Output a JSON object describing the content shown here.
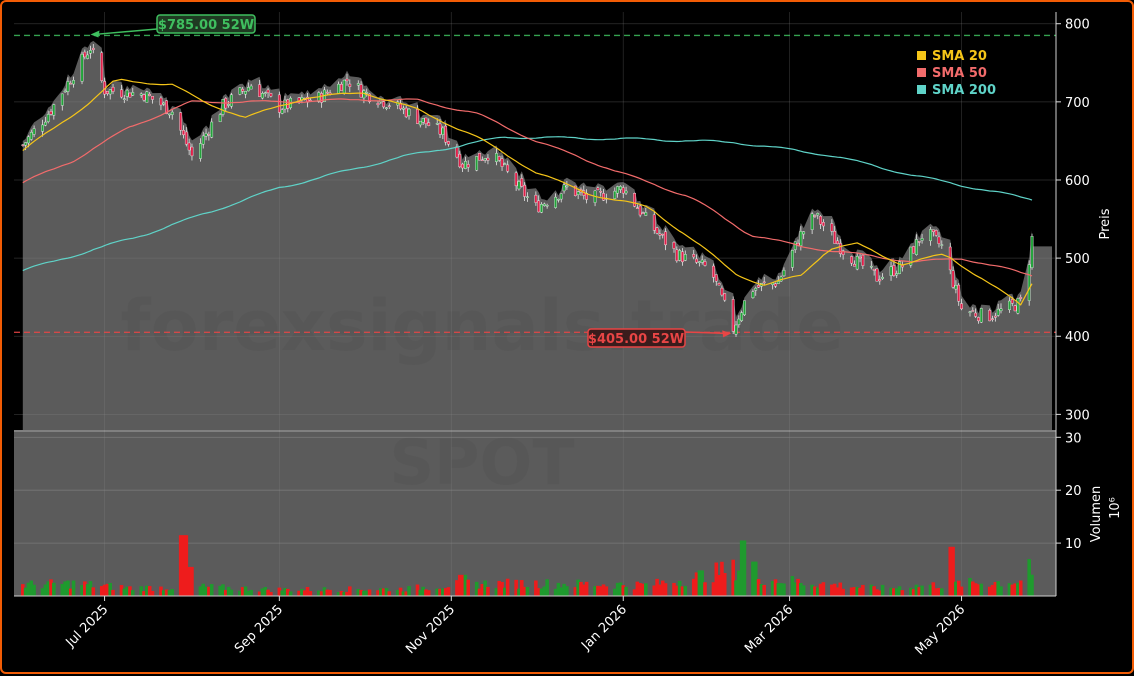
{
  "chart_data": {
    "type": "candlestick",
    "price_axis": {
      "label": "Preis",
      "ticks": [
        300,
        400,
        500,
        600,
        700,
        800
      ],
      "ylim": [
        280,
        815
      ]
    },
    "volume_axis": {
      "label": "Volumen",
      "multiplier": "10⁶",
      "ticks": [
        10,
        20,
        30
      ],
      "ylim": [
        0,
        31
      ]
    },
    "x_axis": {
      "ticks": [
        {
          "label": "Jul 2025",
          "date": "2025-07-01"
        },
        {
          "label": "Sep 2025",
          "date": "2025-09-01"
        },
        {
          "label": "Nov 2025",
          "date": "2025-11-01"
        },
        {
          "label": "Jan 2026",
          "date": "2026-01-01"
        },
        {
          "label": "Mar 2026",
          "date": "2026-03-01"
        },
        {
          "label": "May 2026",
          "date": "2026-05-01"
        }
      ],
      "range": [
        "2025-06-01",
        "2026-05-26"
      ]
    },
    "legend": {
      "position": "top-right",
      "items": [
        {
          "label": "SMA 20",
          "color": "#f5c518"
        },
        {
          "label": "SMA 50",
          "color": "#f26b6b"
        },
        {
          "label": "SMA 200",
          "color": "#5fd3c8"
        }
      ]
    },
    "annotations": [
      {
        "text": "$785.00 52W",
        "value": 785,
        "date": "2025-06-26",
        "color": "#3fbf5f",
        "kind": "high"
      },
      {
        "text": "$405.00 52W",
        "value": 405,
        "date": "2026-02-09",
        "color": "#e84545",
        "kind": "low"
      }
    ],
    "watermark": {
      "line1": "forexsignals.trade",
      "line2": "SPOT"
    },
    "close_anchors": [
      [
        "2025-06-01",
        640
      ],
      [
        "2025-06-12",
        690
      ],
      [
        "2025-06-26",
        770
      ],
      [
        "2025-07-01",
        715
      ],
      [
        "2025-07-15",
        710
      ],
      [
        "2025-07-25",
        688
      ],
      [
        "2025-08-01",
        630
      ],
      [
        "2025-08-12",
        695
      ],
      [
        "2025-08-22",
        722
      ],
      [
        "2025-09-01",
        693
      ],
      [
        "2025-09-15",
        705
      ],
      [
        "2025-09-25",
        728
      ],
      [
        "2025-10-01",
        712
      ],
      [
        "2025-10-15",
        690
      ],
      [
        "2025-10-29",
        660
      ],
      [
        "2025-11-05",
        620
      ],
      [
        "2025-11-15",
        635
      ],
      [
        "2025-11-25",
        590
      ],
      [
        "2025-12-01",
        565
      ],
      [
        "2025-12-12",
        590
      ],
      [
        "2025-12-20",
        575
      ],
      [
        "2026-01-01",
        590
      ],
      [
        "2026-01-10",
        545
      ],
      [
        "2026-01-20",
        505
      ],
      [
        "2026-02-01",
        485
      ],
      [
        "2026-02-09",
        410
      ],
      [
        "2026-02-15",
        460
      ],
      [
        "2026-02-25",
        470
      ],
      [
        "2026-03-05",
        530
      ],
      [
        "2026-03-10",
        555
      ],
      [
        "2026-03-20",
        510
      ],
      [
        "2026-04-01",
        475
      ],
      [
        "2026-04-10",
        490
      ],
      [
        "2026-04-18",
        535
      ],
      [
        "2026-04-24",
        515
      ],
      [
        "2026-05-01",
        435
      ],
      [
        "2026-05-10",
        425
      ],
      [
        "2026-05-20",
        440
      ],
      [
        "2026-05-23",
        445
      ],
      [
        "2026-05-26",
        525
      ]
    ],
    "sma20_anchors": [
      [
        "2025-06-01",
        635
      ],
      [
        "2025-06-26",
        700
      ],
      [
        "2025-07-05",
        728
      ],
      [
        "2025-07-25",
        722
      ],
      [
        "2025-08-05",
        700
      ],
      [
        "2025-08-20",
        680
      ],
      [
        "2025-09-10",
        705
      ],
      [
        "2025-10-01",
        712
      ],
      [
        "2025-10-20",
        690
      ],
      [
        "2025-11-10",
        655
      ],
      [
        "2025-12-01",
        610
      ],
      [
        "2025-12-20",
        582
      ],
      [
        "2026-01-10",
        565
      ],
      [
        "2026-01-25",
        525
      ],
      [
        "2026-02-10",
        480
      ],
      [
        "2026-02-20",
        465
      ],
      [
        "2026-03-05",
        478
      ],
      [
        "2026-03-15",
        512
      ],
      [
        "2026-03-25",
        518
      ],
      [
        "2026-04-10",
        492
      ],
      [
        "2026-04-25",
        505
      ],
      [
        "2026-05-10",
        470
      ],
      [
        "2026-05-22",
        440
      ],
      [
        "2026-05-26",
        468
      ]
    ],
    "sma50_anchors": [
      [
        "2025-06-01",
        595
      ],
      [
        "2025-06-20",
        625
      ],
      [
        "2025-07-10",
        668
      ],
      [
        "2025-08-01",
        700
      ],
      [
        "2025-09-01",
        700
      ],
      [
        "2025-10-01",
        703
      ],
      [
        "2025-10-20",
        702
      ],
      [
        "2025-11-10",
        685
      ],
      [
        "2025-12-01",
        650
      ],
      [
        "2026-01-01",
        608
      ],
      [
        "2026-01-25",
        578
      ],
      [
        "2026-02-15",
        530
      ],
      [
        "2026-03-05",
        515
      ],
      [
        "2026-03-25",
        505
      ],
      [
        "2026-04-15",
        495
      ],
      [
        "2026-05-01",
        500
      ],
      [
        "2026-05-26",
        478
      ]
    ],
    "sma200_anchors": [
      [
        "2025-06-01",
        483
      ],
      [
        "2025-07-15",
        530
      ],
      [
        "2025-09-01",
        590
      ],
      [
        "2025-10-15",
        630
      ],
      [
        "2025-11-20",
        655
      ],
      [
        "2026-01-10",
        652
      ],
      [
        "2026-02-10",
        648
      ],
      [
        "2026-03-15",
        632
      ],
      [
        "2026-04-15",
        605
      ],
      [
        "2026-05-26",
        575
      ]
    ],
    "volume_profile": [
      [
        "2025-06-01",
        2.2
      ],
      [
        "2025-06-20",
        2.5
      ],
      [
        "2025-07-10",
        1.6
      ],
      [
        "2025-08-05",
        1.8
      ],
      [
        "2025-08-30",
        1.3
      ],
      [
        "2025-10-15",
        1.4
      ],
      [
        "2025-11-05",
        2.4
      ],
      [
        "2025-12-01",
        2.5
      ],
      [
        "2026-01-10",
        2.2
      ],
      [
        "2026-01-25",
        3.5
      ],
      [
        "2026-02-05",
        5.0
      ],
      [
        "2026-02-12",
        5.5
      ],
      [
        "2026-02-20",
        3.5
      ],
      [
        "2026-03-05",
        2.8
      ],
      [
        "2026-04-01",
        1.5
      ],
      [
        "2026-05-01",
        2.5
      ],
      [
        "2026-05-26",
        3.0
      ]
    ],
    "volume_spikes": [
      [
        "2025-07-29",
        11.5
      ],
      [
        "2025-08-01",
        5.5
      ],
      [
        "2025-11-05",
        4.0
      ],
      [
        "2026-02-13",
        10.5
      ],
      [
        "2026-02-16",
        6.5
      ],
      [
        "2026-04-27",
        9.3
      ],
      [
        "2026-05-24",
        7.0
      ]
    ]
  }
}
